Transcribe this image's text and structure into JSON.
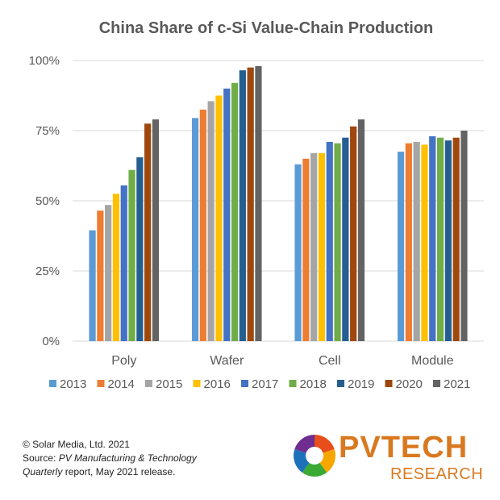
{
  "chart_data": {
    "type": "bar",
    "title": "China Share of c-Si Value-Chain Production",
    "xlabel": "",
    "ylabel": "",
    "ylim": [
      0,
      100
    ],
    "yticks": [
      "0%",
      "25%",
      "50%",
      "75%",
      "100%"
    ],
    "categories": [
      "Poly",
      "Wafer",
      "Cell",
      "Module"
    ],
    "legend_position": "bottom",
    "grid": true,
    "series": [
      {
        "name": "2013",
        "color": "#5b9bd5",
        "values": [
          39.5,
          79.5,
          63,
          67.5
        ]
      },
      {
        "name": "2014",
        "color": "#ed7d31",
        "values": [
          46.5,
          82.5,
          65,
          70.5
        ]
      },
      {
        "name": "2015",
        "color": "#a5a5a5",
        "values": [
          48.5,
          85.5,
          67,
          71
        ]
      },
      {
        "name": "2016",
        "color": "#ffc000",
        "values": [
          52.5,
          87.5,
          67,
          70
        ]
      },
      {
        "name": "2017",
        "color": "#4472c4",
        "values": [
          55.5,
          90,
          71,
          73
        ]
      },
      {
        "name": "2018",
        "color": "#70ad47",
        "values": [
          61,
          92,
          70.5,
          72.5
        ]
      },
      {
        "name": "2019",
        "color": "#255e91",
        "values": [
          65.5,
          96.5,
          72.5,
          71.5
        ]
      },
      {
        "name": "2020",
        "color": "#9e480e",
        "values": [
          77.5,
          97.5,
          76.5,
          72.5
        ]
      },
      {
        "name": "2021",
        "color": "#636363",
        "values": [
          79,
          98,
          79,
          75
        ]
      }
    ]
  },
  "credits": {
    "line1": "© Solar Media, Ltd. 2021",
    "source_prefix": "Source: ",
    "source_italic": "PV Manufacturing & Technology",
    "line3_italic": "Quarterly",
    "line3_rest": " report, May 2021 release."
  },
  "logo": {
    "title": "PVTECH",
    "subtitle": "RESEARCH",
    "colors": [
      "#e84e1b",
      "#f7a600",
      "#3aaa35",
      "#1d71b8",
      "#6f2c91"
    ]
  }
}
